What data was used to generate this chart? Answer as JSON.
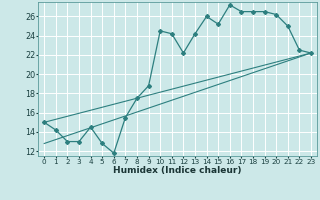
{
  "xlabel": "Humidex (Indice chaleur)",
  "background_color": "#cce8e8",
  "grid_color": "#aacccc",
  "line_color": "#2d7f7f",
  "xlim": [
    -0.5,
    23.5
  ],
  "ylim": [
    11.5,
    27.5
  ],
  "xticks": [
    0,
    1,
    2,
    3,
    4,
    5,
    6,
    7,
    8,
    9,
    10,
    11,
    12,
    13,
    14,
    15,
    16,
    17,
    18,
    19,
    20,
    21,
    22,
    23
  ],
  "yticks": [
    12,
    14,
    16,
    18,
    20,
    22,
    24,
    26
  ],
  "series1_x": [
    0,
    1,
    2,
    3,
    4,
    5,
    6,
    7,
    8,
    9,
    10,
    11,
    12,
    13,
    14,
    15,
    16,
    17,
    18,
    19,
    20,
    21,
    22,
    23
  ],
  "series1_y": [
    15.0,
    14.2,
    13.0,
    13.0,
    14.5,
    12.8,
    11.8,
    15.5,
    17.5,
    18.8,
    24.5,
    24.2,
    22.2,
    24.2,
    26.0,
    25.2,
    27.2,
    26.5,
    26.5,
    26.5,
    26.2,
    25.0,
    22.5,
    22.2
  ],
  "line1_x": [
    0,
    23
  ],
  "line1_y": [
    15.0,
    22.2
  ],
  "line2_x": [
    0,
    23
  ],
  "line2_y": [
    12.8,
    22.2
  ]
}
